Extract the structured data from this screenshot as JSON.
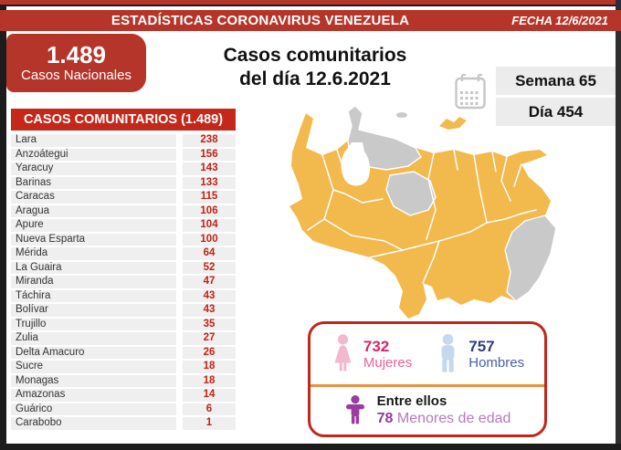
{
  "header": {
    "title": "ESTADÍSTICAS CORONAVIRUS VENEZUELA",
    "date_label": "FECHA 12/6/2021"
  },
  "national": {
    "value": "1.489",
    "label": "Casos Nacionales"
  },
  "main_title": {
    "line1": "Casos comunitarios",
    "line2": "del día 12.6.2021"
  },
  "period": {
    "week": "Semana 65",
    "day": "Día 454"
  },
  "table": {
    "header": "CASOS COMUNITARIOS (1.489)",
    "rows": [
      [
        "Lara",
        "238"
      ],
      [
        "Anzoátegui",
        "156"
      ],
      [
        "Yaracuy",
        "143"
      ],
      [
        "Barinas",
        "133"
      ],
      [
        "Caracas",
        "115"
      ],
      [
        "Aragua",
        "106"
      ],
      [
        "Apure",
        "104"
      ],
      [
        "Nueva Esparta",
        "100"
      ],
      [
        "Mérida",
        "64"
      ],
      [
        "La Guaira",
        "52"
      ],
      [
        "Miranda",
        "47"
      ],
      [
        "Táchira",
        "43"
      ],
      [
        "Bolívar",
        "43"
      ],
      [
        "Trujillo",
        "35"
      ],
      [
        "Zulia",
        "27"
      ],
      [
        "Delta Amacuro",
        "26"
      ],
      [
        "Sucre",
        "18"
      ],
      [
        "Monagas",
        "18"
      ],
      [
        "Amazonas",
        "14"
      ],
      [
        "Guárico",
        "6"
      ],
      [
        "Carabobo",
        "1"
      ]
    ]
  },
  "chart_data": {
    "type": "table",
    "title": "CASOS COMUNITARIOS (1.489)",
    "categories": [
      "Lara",
      "Anzoátegui",
      "Yaracuy",
      "Barinas",
      "Caracas",
      "Aragua",
      "Apure",
      "Nueva Esparta",
      "Mérida",
      "La Guaira",
      "Miranda",
      "Táchira",
      "Bolívar",
      "Trujillo",
      "Zulia",
      "Delta Amacuro",
      "Sucre",
      "Monagas",
      "Amazonas",
      "Guárico",
      "Carabobo"
    ],
    "values": [
      238,
      156,
      143,
      133,
      115,
      106,
      104,
      100,
      64,
      52,
      47,
      43,
      43,
      35,
      27,
      26,
      18,
      18,
      14,
      6,
      1
    ],
    "total_national": 1489,
    "map": {
      "region": "Venezuela",
      "highlight_color": "#F2BA4D",
      "no_data_color": "#C9C9C9",
      "no_data_regions": [
        "Falcón",
        "Portuguesa",
        "Cojedes",
        "Esequibo"
      ]
    },
    "demographics": {
      "mujeres": 732,
      "hombres": 757,
      "menores_de_edad": 78
    }
  },
  "demographics": {
    "women": {
      "value": "732",
      "label": "Mujeres"
    },
    "men": {
      "value": "757",
      "label": "Hombres"
    },
    "minors": {
      "prefix": "Entre ellos",
      "value": "78",
      "label": "Menores de edad"
    }
  },
  "icons": {
    "calendar": "calendar-icon",
    "female": "female-figure-icon",
    "male": "male-figure-icon",
    "child": "child-figure-icon"
  },
  "colors": {
    "brand_red": "#B5352A",
    "table_header_red": "#C3281B",
    "value_red": "#C02318",
    "row_gray": "#EFEFEF",
    "map_yellow": "#F2BA4D",
    "map_gray": "#C9C9C9",
    "box_border_red": "#C0281D",
    "divider_orange": "#E8913F",
    "pink": "#D6246E",
    "blue": "#2F3E86",
    "purple": "#8F3D9C"
  }
}
